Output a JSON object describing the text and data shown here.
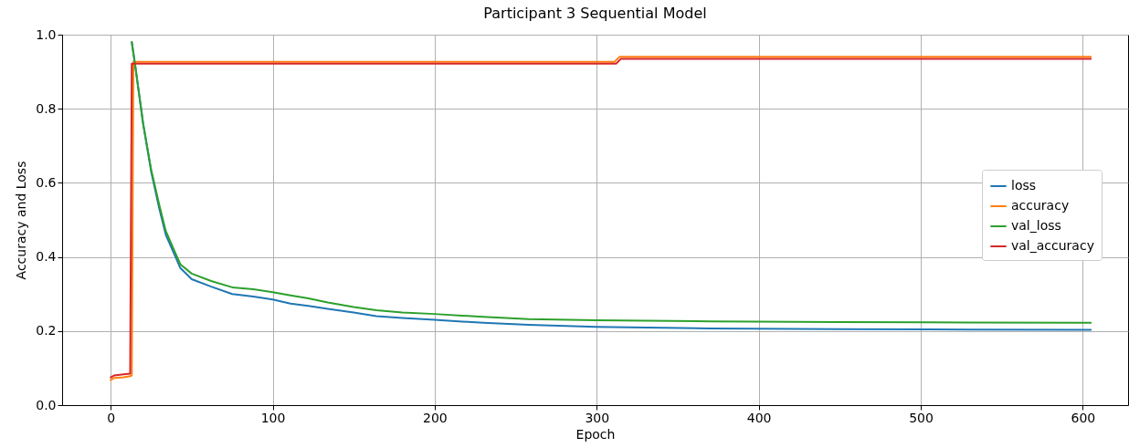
{
  "chart_data": {
    "type": "line",
    "title": "Participant 3 Sequential Model",
    "xlabel": "Epoch",
    "ylabel": "Accuracy and Loss",
    "xlim": [
      -30,
      628
    ],
    "ylim": [
      0,
      1
    ],
    "xticks": [
      0,
      100,
      200,
      300,
      400,
      500,
      600
    ],
    "yticks": [
      {
        "value": 0,
        "label": "0.0"
      },
      {
        "value": 0.2,
        "label": "0.2"
      },
      {
        "value": 0.4,
        "label": "0.4"
      },
      {
        "value": 0.6,
        "label": "0.6"
      },
      {
        "value": 0.8,
        "label": "0.8"
      },
      {
        "value": 1,
        "label": "1.0"
      }
    ],
    "grid": true,
    "legend": "center right",
    "line_style": "solid",
    "marker": "none",
    "series": [
      {
        "name": "loss",
        "color": "#1f77b4",
        "x": [
          13,
          15,
          20,
          25,
          30,
          34,
          40,
          43,
          50,
          62,
          75,
          88,
          100,
          111,
          122,
          134,
          150,
          164,
          180,
          200,
          230,
          258,
          300,
          370,
          450,
          530,
          605
        ],
        "values": [
          0.98,
          0.92,
          0.76,
          0.63,
          0.53,
          0.46,
          0.4,
          0.37,
          0.34,
          0.32,
          0.3,
          0.293,
          0.285,
          0.274,
          0.268,
          0.26,
          0.25,
          0.24,
          0.235,
          0.23,
          0.222,
          0.217,
          0.211,
          0.207,
          0.205,
          0.204,
          0.203
        ]
      },
      {
        "name": "accuracy",
        "color": "#ff7f0e",
        "x": [
          0,
          2,
          8,
          12,
          13,
          14,
          311,
          314,
          605
        ],
        "values": [
          0.068,
          0.073,
          0.075,
          0.078,
          0.08,
          0.927,
          0.927,
          0.94,
          0.94
        ]
      },
      {
        "name": "val_loss",
        "color": "#2ca02c",
        "x": [
          13,
          15,
          20,
          25,
          30,
          34,
          40,
          43,
          50,
          62,
          75,
          88,
          100,
          111,
          122,
          134,
          150,
          164,
          180,
          200,
          230,
          258,
          300,
          370,
          450,
          530,
          605
        ],
        "values": [
          0.98,
          0.92,
          0.76,
          0.635,
          0.54,
          0.47,
          0.41,
          0.38,
          0.355,
          0.335,
          0.318,
          0.313,
          0.305,
          0.296,
          0.288,
          0.277,
          0.265,
          0.256,
          0.25,
          0.246,
          0.238,
          0.232,
          0.229,
          0.226,
          0.224,
          0.223,
          0.222
        ]
      },
      {
        "name": "val_accuracy",
        "color": "#d62728",
        "x": [
          0,
          2,
          8,
          12,
          13,
          312,
          315,
          605
        ],
        "values": [
          0.075,
          0.08,
          0.083,
          0.085,
          0.922,
          0.922,
          0.935,
          0.935
        ]
      }
    ]
  }
}
